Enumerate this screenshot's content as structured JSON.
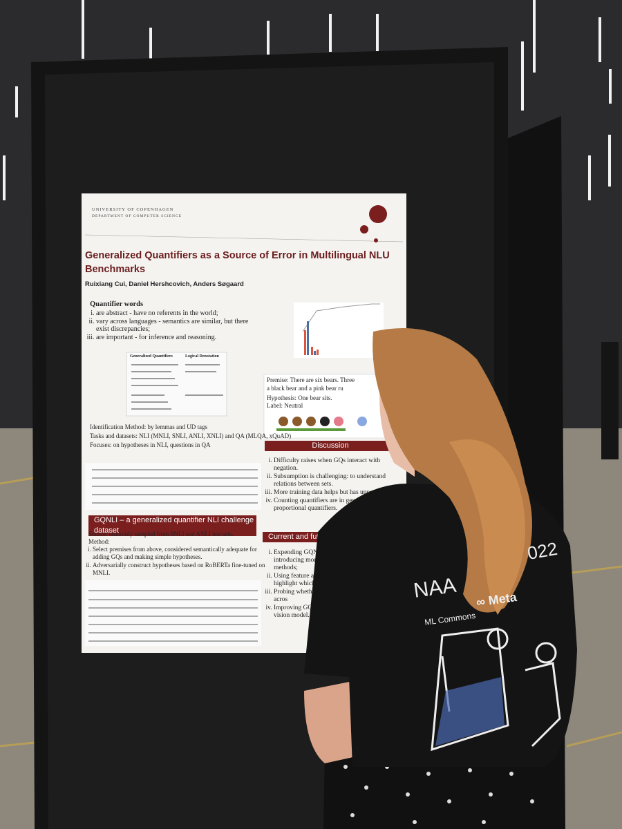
{
  "poster": {
    "header": [
      "UNIVERSITY OF COPENHAGEN",
      "DEPARTMENT OF COMPUTER SCIENCE"
    ],
    "title": "Generalized Quantifiers as a Source of Error in Multilingual NLU Benchmarks",
    "authors": "Ruixiang Cui, Daniel Hershcovich, Anders Søgaard",
    "quantifier_heading": "Quantifier words",
    "quantifier_items": [
      "are abstract - have no referents in the world;",
      "vary across languages - semantics are similar, but there exist discrepancies;",
      "are important - for inference and reasoning."
    ],
    "table_headers": [
      "Generalized Quantifiers",
      "Logical Denotation"
    ],
    "identification": "Identification Method: by lemmas and UD tags",
    "tasks": "Tasks and datasets: NLI (MNLI, SNLI, ANLI, XNLI) and QA (MLQA, xQuAD)",
    "focuses": "Focuses: on hypotheses in NLI, questions in QA",
    "gqnli_heading": "GQNLI – a generalized quantifier NLI challenge dataset",
    "source": "Source: randomly sampled from SNLI and ANLI test sets.",
    "method": "Method:",
    "method_items": [
      "Select premises from above, considered semantically adequate for adding GQs and making simple hypotheses.",
      "Adversarially construct hypotheses based on RoBERTa fine-tuned on MNLI."
    ],
    "premise": [
      "Premise: There are six bears. Three",
      "a black bear and a pink bear ru"
    ],
    "hypothesis": "Hypothesis: One bear sits.",
    "label": "Label: Neutral",
    "discussion_heading": "Discussion",
    "discussion_items": [
      "Difficulty raises when GQs interact with negation.",
      "Subsumption is challenging: to understand relations between sets.",
      "More training data helps but has upper bound.",
      "Counting quantifiers are in general easier than proportional quantifiers."
    ],
    "future_heading": "Current and futur",
    "future_items": [
      "Expending GQNLI to introducing more div methods;",
      "Using feature attrib highlight which p",
      "Probing whether equivalent acros",
      "Improving GQ system, vision model."
    ]
  },
  "shirt": {
    "event": [
      "NAA",
      "022"
    ],
    "sponsor": "∞ Meta",
    "sponsor2": "ML Commons"
  }
}
